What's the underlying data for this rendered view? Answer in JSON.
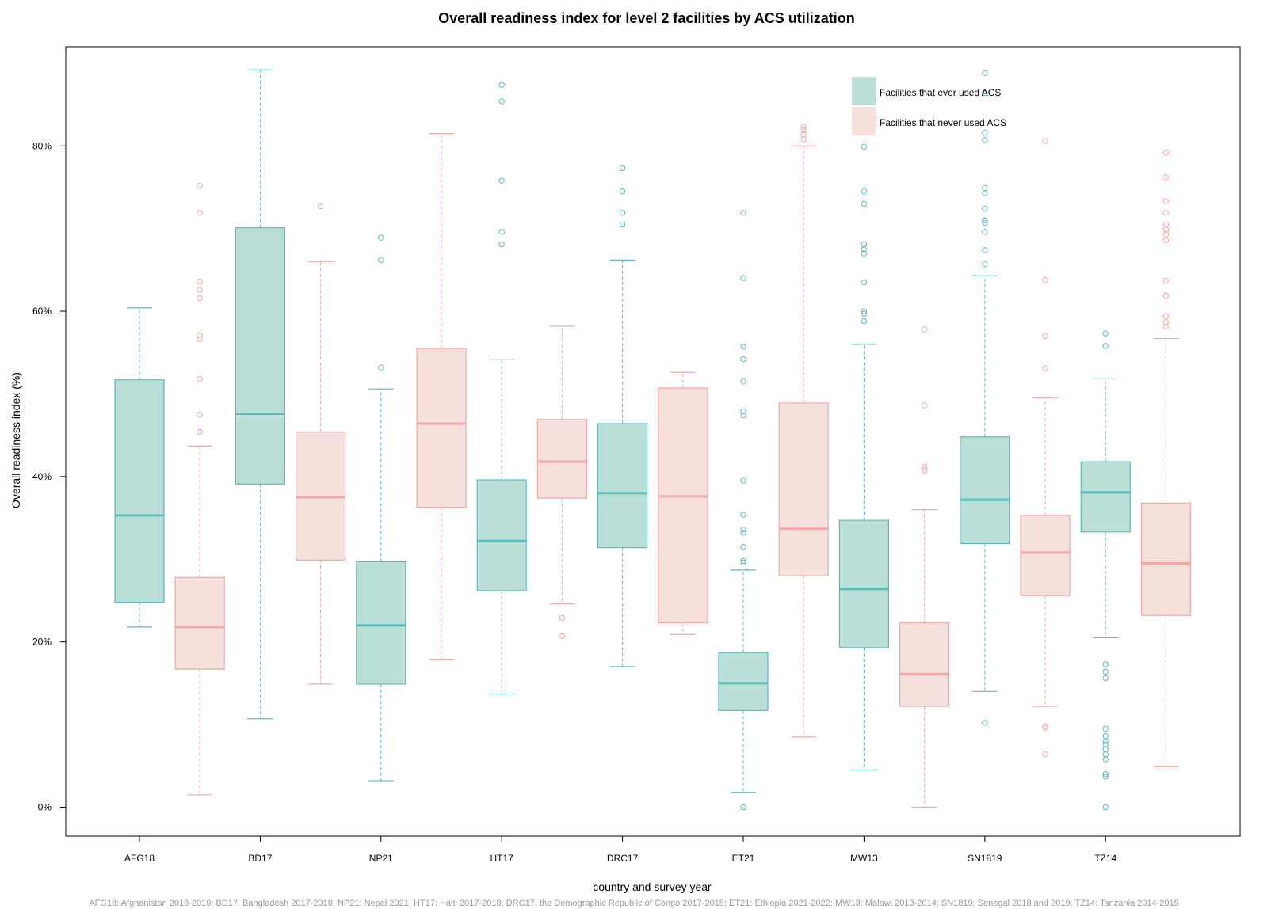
{
  "chart_data": {
    "type": "boxplot",
    "title": "Overall readiness index for level 2 facilities by ACS utilization",
    "xlabel": "country and survey year",
    "ylabel": "Overall readiness index (%)",
    "ylim": [
      -3.5,
      92
    ],
    "yticks": [
      0,
      20,
      40,
      60,
      80
    ],
    "ytick_labels": [
      "0%",
      "20%",
      "40%",
      "60%",
      "80%"
    ],
    "categories": [
      "AFG18",
      "BD17",
      "NP21",
      "HT17",
      "DRC17",
      "ET21",
      "MW13",
      "SN1819",
      "TZ14"
    ],
    "legend_position": "top-right",
    "footnote": "AFG18: Afghanistan 2018-2019; BD17: Bangladesh 2017-2018; NP21: Nepal 2021; HT17: Haiti 2017-2018; DRC17: the Demographic Republic of Congo 2017-2018; ET21: Ethiopia 2021-2022; MW13: Malawi 2013-2014; SN1819; Senegal 2018 and 2019; TZ14: Tanzania 2014-2015",
    "series": [
      {
        "name": "Facilities that ever used ACS",
        "fill": "#b9dfd6",
        "stroke": "#5bbcbf",
        "boxes": [
          {
            "category": "AFG18",
            "whisker_low": 21.8,
            "q1": 24.8,
            "median": 35.3,
            "q3": 51.7,
            "whisker_high": 60.4,
            "outliers": []
          },
          {
            "category": "BD17",
            "whisker_low": 10.7,
            "q1": 39.1,
            "median": 47.6,
            "q3": 70.1,
            "whisker_high": 89.2,
            "outliers": []
          },
          {
            "category": "NP21",
            "whisker_low": 3.2,
            "q1": 14.9,
            "median": 22.0,
            "q3": 29.7,
            "whisker_high": 50.6,
            "outliers": [
              53.2,
              66.2,
              68.9
            ]
          },
          {
            "category": "HT17",
            "whisker_low": 13.7,
            "q1": 26.2,
            "median": 32.2,
            "q3": 39.6,
            "whisker_high": 54.2,
            "outliers": [
              68.1,
              69.6,
              75.8,
              85.4,
              87.4
            ]
          },
          {
            "category": "DRC17",
            "whisker_low": 17.0,
            "q1": 31.4,
            "median": 38.0,
            "q3": 46.4,
            "whisker_high": 66.2,
            "outliers": [
              70.5,
              71.9,
              74.5,
              77.3
            ]
          },
          {
            "category": "ET21",
            "whisker_low": 1.8,
            "q1": 11.7,
            "median": 15.0,
            "q3": 18.7,
            "whisker_high": 28.7,
            "outliers": [
              0.0,
              29.6,
              29.8,
              31.5,
              33.2,
              33.6,
              35.4,
              39.5,
              47.4,
              47.9,
              51.5,
              54.2,
              55.7,
              64.0,
              71.9
            ]
          },
          {
            "category": "MW13",
            "whisker_low": 4.5,
            "q1": 19.3,
            "median": 26.4,
            "q3": 34.7,
            "whisker_high": 56.0,
            "outliers": [
              58.8,
              59.7,
              60.0,
              63.5,
              67.0,
              67.5,
              68.1,
              73.0,
              74.5,
              79.9
            ]
          },
          {
            "category": "SN1819",
            "whisker_low": 14.0,
            "q1": 31.9,
            "median": 37.2,
            "q3": 44.8,
            "whisker_high": 64.3,
            "outliers": [
              10.2,
              65.7,
              67.4,
              69.6,
              70.7,
              71.0,
              72.4,
              74.3,
              74.9,
              80.7,
              81.6,
              86.4,
              88.8
            ]
          },
          {
            "category": "TZ14",
            "whisker_low": 20.5,
            "q1": 33.3,
            "median": 38.1,
            "q3": 41.8,
            "whisker_high": 51.9,
            "outliers": [
              0.0,
              3.7,
              4.0,
              5.8,
              6.4,
              7.0,
              7.6,
              8.0,
              8.6,
              9.5,
              15.6,
              16.4,
              17.3,
              55.8,
              57.3
            ]
          }
        ]
      },
      {
        "name": "Facilities that never used ACS",
        "fill": "#f6e0dc",
        "stroke": "#f3a7a9",
        "boxes": [
          {
            "category": "AFG18",
            "whisker_low": 1.5,
            "q1": 16.7,
            "median": 21.8,
            "q3": 27.8,
            "whisker_high": 43.7,
            "outliers": [
              45.4,
              47.5,
              51.8,
              56.6,
              57.1,
              61.6,
              62.6,
              63.6,
              71.9,
              75.2
            ]
          },
          {
            "category": "BD17",
            "whisker_low": 14.9,
            "q1": 29.9,
            "median": 37.5,
            "q3": 45.4,
            "whisker_high": 66.0,
            "outliers": [
              72.7
            ]
          },
          {
            "category": "NP21",
            "whisker_low": 17.9,
            "q1": 36.3,
            "median": 46.4,
            "q3": 55.5,
            "whisker_high": 81.5,
            "outliers": []
          },
          {
            "category": "HT17",
            "whisker_low": 24.6,
            "q1": 37.4,
            "median": 41.8,
            "q3": 46.9,
            "whisker_high": 58.2,
            "outliers": [
              20.7,
              22.9
            ]
          },
          {
            "category": "DRC17",
            "whisker_low": 20.9,
            "q1": 22.3,
            "median": 37.6,
            "q3": 50.7,
            "whisker_high": 52.6,
            "outliers": []
          },
          {
            "category": "ET21",
            "whisker_low": 8.5,
            "q1": 28.0,
            "median": 33.7,
            "q3": 48.9,
            "whisker_high": 80.0,
            "outliers": [
              80.8,
              81.4,
              81.9,
              82.3
            ]
          },
          {
            "category": "MW13",
            "whisker_low": 0.0,
            "q1": 12.2,
            "median": 16.1,
            "q3": 22.3,
            "whisker_high": 36.0,
            "outliers": [
              40.8,
              41.2,
              48.6,
              57.8
            ]
          },
          {
            "category": "SN1819",
            "whisker_low": 12.2,
            "q1": 25.6,
            "median": 30.8,
            "q3": 35.3,
            "whisker_high": 49.5,
            "outliers": [
              6.4,
              9.6,
              9.8,
              53.1,
              57.0,
              63.8,
              80.6
            ]
          },
          {
            "category": "TZ14",
            "whisker_low": 4.9,
            "q1": 23.2,
            "median": 29.5,
            "q3": 36.8,
            "whisker_high": 56.7,
            "outliers": [
              58.1,
              58.7,
              59.4,
              61.9,
              63.7,
              68.6,
              69.3,
              69.9,
              70.5,
              71.9,
              73.3,
              76.2,
              79.2
            ]
          }
        ]
      }
    ]
  }
}
